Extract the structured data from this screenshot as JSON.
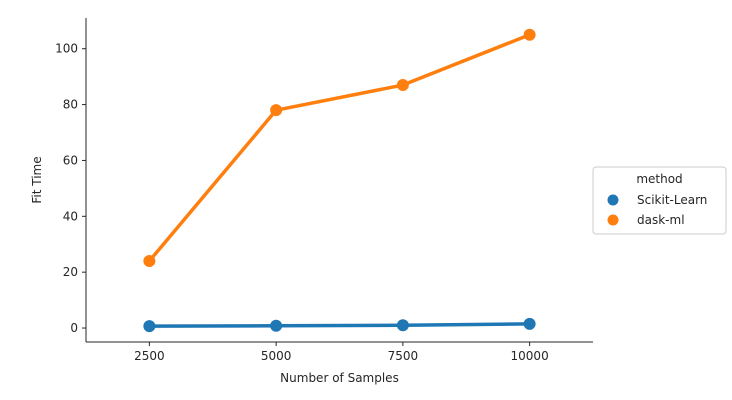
{
  "chart_data": {
    "type": "line",
    "title": "",
    "xlabel": "Number of Samples",
    "ylabel": "Fit Time",
    "categories": [
      "2500",
      "5000",
      "7500",
      "10000"
    ],
    "yticks": [
      0,
      20,
      40,
      60,
      80,
      100
    ],
    "ylim": [
      -5,
      111
    ],
    "grid": false,
    "legend": {
      "title": "method",
      "placement": "center-right outside",
      "entries": [
        "Scikit-Learn",
        "dask-ml"
      ]
    },
    "series": [
      {
        "name": "Scikit-Learn",
        "color": "#1f77b4",
        "values": [
          0.7,
          0.8,
          1.0,
          1.5
        ]
      },
      {
        "name": "dask-ml",
        "color": "#ff7f0e",
        "values": [
          24,
          78,
          87,
          105
        ]
      }
    ]
  }
}
